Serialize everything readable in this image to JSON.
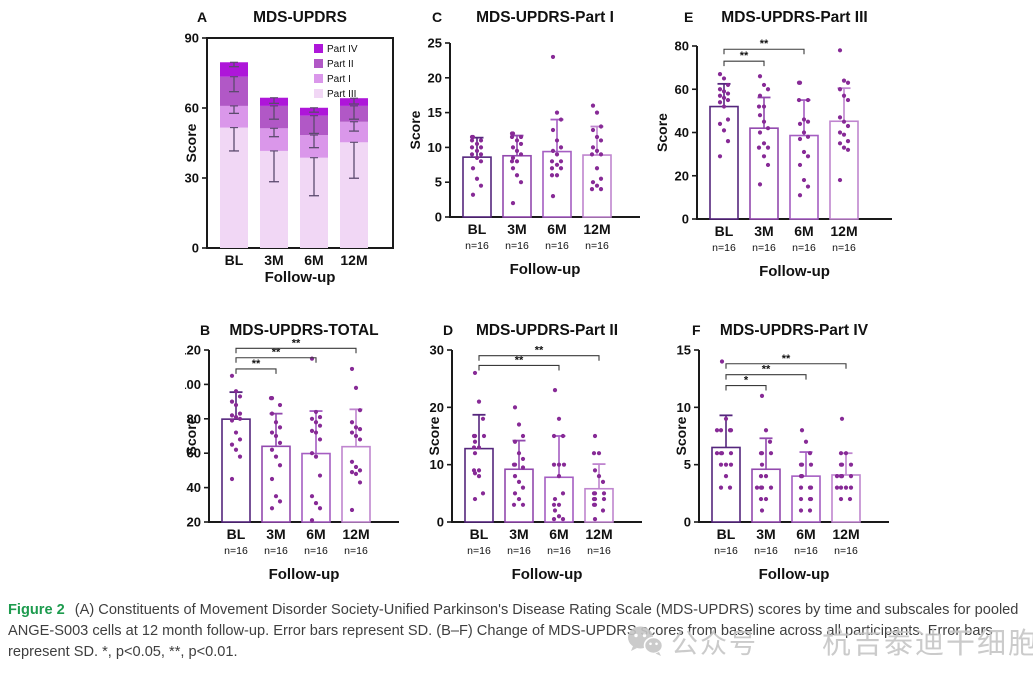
{
  "caption": {
    "label": "Figure 2",
    "text": "(A) Constituents of Movement Disorder Society-Unified Parkinson's Disease Rating Scale (MDS-UPDRS) scores by time and subscales for pooled ANGE-S003 cells at 12 month follow-up. Error bars represent SD. (B–F) Change of MDS-UPDRS scores from baseline across all participants. Error bars represent SD. *, p<0.05, **, p<0.01."
  },
  "watermark": {
    "icon": "wechat-icon",
    "account_label": "公众号",
    "account_name": "杭吉泰迪干细胞"
  },
  "colors": {
    "axis": "#1a1a1a",
    "bar_outlines": [
      "#55267d",
      "#9249ae",
      "#a55ec2",
      "#bf85cf"
    ],
    "dot": "#872a96",
    "stacked_whisker": "#5c4a6e",
    "sig": "#3a3a3a",
    "caption_label_green": "#1d9b4e",
    "watermark_gray": "#c6c6c6"
  },
  "chart_data": [
    {
      "panel": "A",
      "type": "stacked-bar",
      "title": "MDS-UPDRS",
      "ylabel": "Score",
      "xlabel": "Follow-up",
      "categories": [
        "BL",
        "3M",
        "6M",
        "12M"
      ],
      "ylim": [
        0,
        90
      ],
      "yticks": [
        0,
        30,
        60,
        90
      ],
      "series": [
        {
          "name": "Part III",
          "color": "#f1d7f5",
          "values": [
            51.6,
            41.6,
            38.7,
            45.3
          ]
        },
        {
          "name": "Part I",
          "color": "#da97ea",
          "values": [
            9.3,
            9.7,
            9.7,
            8.8
          ]
        },
        {
          "name": "Part II",
          "color": "#b158c6",
          "values": [
            12.5,
            9.6,
            8.3,
            6.8
          ]
        },
        {
          "name": "Part IV",
          "color": "#ae16d9",
          "values": [
            6.2,
            3.5,
            3.4,
            3.3
          ]
        }
      ],
      "legend": [
        {
          "label": "Part IV",
          "color": "#ae16d9"
        },
        {
          "label": "Part II",
          "color": "#b158c6"
        },
        {
          "label": "Part I",
          "color": "#da97ea"
        },
        {
          "label": "Part III",
          "color": "#f1d7f5"
        }
      ],
      "whiskers": [
        [
          {
            "at": 51.6,
            "lo": 41.6
          },
          {
            "at": 60.9,
            "lo": 57.7
          },
          {
            "at": 73.4,
            "lo": 67.0
          },
          {
            "at": 79.6,
            "lo": 77.7
          }
        ],
        [
          {
            "at": 41.6,
            "lo": 28.4
          },
          {
            "at": 51.3,
            "lo": 47.7
          },
          {
            "at": 60.9,
            "lo": 55.2
          },
          {
            "at": 64.4,
            "lo": 62.0
          }
        ],
        [
          {
            "at": 38.7,
            "lo": 22.4
          },
          {
            "at": 48.4,
            "lo": 43.0
          },
          {
            "at": 56.7,
            "lo": 49.1
          },
          {
            "at": 60.1,
            "lo": 58.2
          }
        ],
        [
          {
            "at": 45.3,
            "lo": 29.9
          },
          {
            "at": 54.1,
            "lo": 50.1
          },
          {
            "at": 60.9,
            "lo": 55.2
          },
          {
            "at": 64.2,
            "lo": 61.7
          }
        ]
      ],
      "sig": []
    },
    {
      "panel": "C",
      "type": "bar-scatter",
      "title": "MDS-UPDRS-Part I",
      "ylabel": "Score",
      "xlabel": "Follow-up",
      "categories": [
        "BL",
        "3M",
        "6M",
        "12M"
      ],
      "n_labels": [
        "n=16",
        "n=16",
        "n=16",
        "n=16"
      ],
      "ylim": [
        0,
        25
      ],
      "yticks": [
        0,
        5,
        10,
        15,
        20,
        25
      ],
      "bars": [
        {
          "mean": 8.6,
          "sd_top": 11.4
        },
        {
          "mean": 8.8,
          "sd_top": 11.7
        },
        {
          "mean": 9.4,
          "sd_top": 14.0
        },
        {
          "mean": 8.9,
          "sd_top": 13.0
        }
      ],
      "points": [
        [
          11.5,
          11.5,
          11,
          11,
          10.5,
          10,
          10,
          9.5,
          9,
          9,
          8.5,
          8,
          7,
          5.5,
          4.5,
          3.2
        ],
        [
          12,
          12,
          11.5,
          11.5,
          11,
          10.5,
          10,
          9.5,
          9,
          8.5,
          8,
          8,
          7,
          6,
          5,
          2
        ],
        [
          23,
          15,
          14,
          12.5,
          11,
          10,
          9.5,
          9,
          8,
          8,
          7.5,
          7,
          7,
          6,
          6,
          3
        ],
        [
          16,
          15,
          13,
          12.5,
          11.5,
          11,
          10,
          9.5,
          9,
          9,
          7,
          5.5,
          5,
          4.5,
          4,
          4
        ]
      ],
      "sig": []
    },
    {
      "panel": "E",
      "type": "bar-scatter",
      "title": "MDS-UPDRS-Part III",
      "ylabel": "Score",
      "xlabel": "Follow-up",
      "categories": [
        "BL",
        "3M",
        "6M",
        "12M"
      ],
      "n_labels": [
        "n=16",
        "n=16",
        "n=16",
        "n=16"
      ],
      "ylim": [
        0,
        80
      ],
      "yticks": [
        0,
        20,
        40,
        60,
        80
      ],
      "bars": [
        {
          "mean": 52.0,
          "sd_top": 62.5
        },
        {
          "mean": 42.0,
          "sd_top": 56.2
        },
        {
          "mean": 38.6,
          "sd_top": 55.0
        },
        {
          "mean": 45.2,
          "sd_top": 60.5
        }
      ],
      "points": [
        [
          67,
          65,
          62,
          60,
          59,
          58,
          57,
          56,
          55,
          54,
          52,
          46,
          44,
          41,
          36,
          29
        ],
        [
          66,
          62,
          60,
          57,
          52,
          52,
          48,
          45,
          42,
          40,
          35,
          33,
          33,
          29,
          25,
          16
        ],
        [
          63,
          63,
          55,
          55,
          46,
          45,
          44,
          40,
          38,
          37,
          31,
          29,
          25,
          18,
          15,
          11
        ],
        [
          78,
          64,
          63,
          60,
          57,
          55,
          47,
          45,
          43,
          40,
          39,
          36,
          35,
          33,
          32,
          18
        ]
      ],
      "sig": [
        {
          "from": 0,
          "to": 1,
          "label": "**",
          "y": 73
        },
        {
          "from": 0,
          "to": 2,
          "label": "**",
          "y": 78.5
        }
      ]
    },
    {
      "panel": "B",
      "type": "bar-scatter",
      "title": "MDS-UPDRS-TOTAL",
      "ylabel": "Score",
      "xlabel": "Follow-up",
      "categories": [
        "BL",
        "3M",
        "6M",
        "12M"
      ],
      "n_labels": [
        "n=16",
        "n=16",
        "n=16",
        "n=16"
      ],
      "ylim": [
        20,
        120
      ],
      "yticks": [
        20,
        40,
        60,
        80,
        100,
        120
      ],
      "bars": [
        {
          "mean": 79.8,
          "sd_top": 95.5
        },
        {
          "mean": 64.0,
          "sd_top": 83.0
        },
        {
          "mean": 59.8,
          "sd_top": 84.5
        },
        {
          "mean": 63.8,
          "sd_top": 85.5
        }
      ],
      "points": [
        [
          105,
          96,
          93,
          90,
          88,
          83,
          82,
          81,
          80,
          79,
          72,
          68,
          65,
          62,
          58,
          45
        ],
        [
          92,
          92,
          88,
          83,
          78,
          75,
          72,
          70,
          66,
          62,
          58,
          53,
          45,
          35,
          32,
          28
        ],
        [
          115,
          84,
          81,
          80,
          78,
          76,
          73,
          72,
          68,
          60,
          58,
          47,
          35,
          31,
          28,
          21
        ],
        [
          109,
          98,
          85,
          78,
          75,
          74,
          72,
          70,
          68,
          55,
          52,
          50,
          49,
          48,
          43,
          27
        ]
      ],
      "sig": [
        {
          "from": 0,
          "to": 1,
          "label": "**",
          "y": 109
        },
        {
          "from": 0,
          "to": 2,
          "label": "**",
          "y": 115.5
        },
        {
          "from": 0,
          "to": 3,
          "label": "**",
          "y": 121
        }
      ]
    },
    {
      "panel": "D",
      "type": "bar-scatter",
      "title": "MDS-UPDRS-Part II",
      "ylabel": "Score",
      "xlabel": "Follow-up",
      "categories": [
        "BL",
        "3M",
        "6M",
        "12M"
      ],
      "n_labels": [
        "n=16",
        "n=16",
        "n=16",
        "n=16"
      ],
      "ylim": [
        0,
        30
      ],
      "yticks": [
        0,
        10,
        20,
        30
      ],
      "bars": [
        {
          "mean": 12.8,
          "sd_top": 18.7
        },
        {
          "mean": 9.2,
          "sd_top": 14.2
        },
        {
          "mean": 7.8,
          "sd_top": 15.0
        },
        {
          "mean": 5.8,
          "sd_top": 10.1
        }
      ],
      "points": [
        [
          26,
          21,
          18,
          15,
          15,
          15,
          14,
          13,
          13,
          12,
          9,
          9,
          8.5,
          8,
          5,
          4
        ],
        [
          20,
          17,
          15,
          14,
          12,
          11,
          10,
          10,
          9.5,
          8,
          7,
          6,
          5,
          4,
          3,
          3
        ],
        [
          23,
          18,
          15,
          15,
          10,
          10,
          10,
          8,
          5,
          4,
          3,
          3,
          2,
          1,
          0.5,
          0.5
        ],
        [
          15,
          12,
          12,
          9,
          8,
          7,
          5,
          5,
          5,
          4,
          4,
          4,
          3,
          3,
          2,
          0.5
        ]
      ],
      "sig": [
        {
          "from": 0,
          "to": 2,
          "label": "**",
          "y": 27.3
        },
        {
          "from": 0,
          "to": 3,
          "label": "**",
          "y": 29
        }
      ]
    },
    {
      "panel": "F",
      "type": "bar-scatter",
      "title": "MDS-UPDRS-Part IV",
      "ylabel": "Score",
      "xlabel": "Follow-up",
      "categories": [
        "BL",
        "3M",
        "6M",
        "12M"
      ],
      "n_labels": [
        "n=16",
        "n=16",
        "n=16",
        "n=16"
      ],
      "ylim": [
        0,
        15
      ],
      "yticks": [
        0,
        5,
        10,
        15
      ],
      "bars": [
        {
          "mean": 6.5,
          "sd_top": 9.3
        },
        {
          "mean": 4.6,
          "sd_top": 7.3
        },
        {
          "mean": 4.0,
          "sd_top": 6.1
        },
        {
          "mean": 4.1,
          "sd_top": 6.0
        }
      ],
      "points": [
        [
          14,
          9,
          8,
          8,
          8,
          8,
          6,
          6,
          6,
          6,
          5,
          5,
          5,
          4,
          3,
          3
        ],
        [
          11,
          8,
          7,
          6,
          6,
          6,
          5,
          4,
          4,
          3,
          3,
          3,
          3,
          2,
          2,
          1
        ],
        [
          8,
          7,
          6,
          5,
          5,
          5,
          4,
          4,
          3,
          3,
          3,
          2,
          2,
          2,
          1,
          1
        ],
        [
          9,
          6,
          6,
          5,
          5,
          5,
          4,
          4,
          4,
          4,
          3,
          3,
          3,
          3,
          2,
          2
        ]
      ],
      "sig": [
        {
          "from": 0,
          "to": 1,
          "label": "*",
          "y": 11.9
        },
        {
          "from": 0,
          "to": 2,
          "label": "**",
          "y": 12.85
        },
        {
          "from": 0,
          "to": 3,
          "label": "**",
          "y": 13.8
        }
      ]
    }
  ]
}
